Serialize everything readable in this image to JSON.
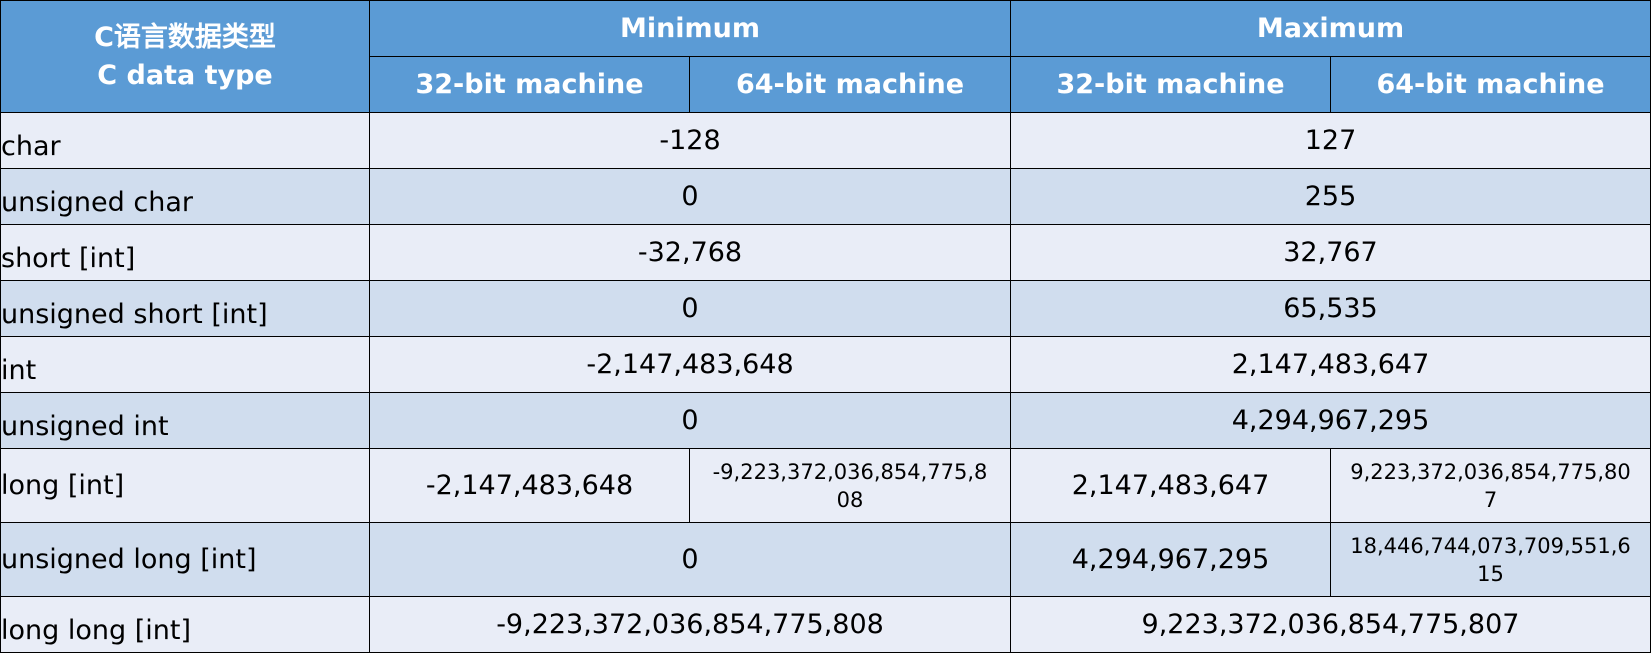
{
  "table": {
    "corner_label_zh": "C语言数据类型",
    "corner_label_en": "C data type",
    "minimum_label": "Minimum",
    "maximum_label": "Maximum",
    "machine_32_label": "32-bit machine",
    "machine_64_label": "64-bit machine",
    "rows": [
      {
        "type": "char",
        "min": "-128",
        "max": "127"
      },
      {
        "type": "unsigned char",
        "min": "0",
        "max": "255"
      },
      {
        "type": "short [int]",
        "min": "-32,768",
        "max": "32,767"
      },
      {
        "type": "unsigned short [int]",
        "min": "0",
        "max": "65,535"
      },
      {
        "type": "int",
        "min": "-2,147,483,648",
        "max": "2,147,483,647"
      },
      {
        "type": "unsigned int",
        "min": "0",
        "max": "4,294,967,295"
      },
      {
        "type": "long [int]",
        "min_32": "-2,147,483,648",
        "min_64": "-9,223,372,036,854,775,808",
        "max_32": "2,147,483,647",
        "max_64": "9,223,372,036,854,775,807"
      },
      {
        "type": "unsigned long [int]",
        "min": "0",
        "max_32": "4,294,967,295",
        "max_64": "18,446,744,073,709,551,615"
      },
      {
        "type": "long long [int]",
        "min": "-9,223,372,036,854,775,808",
        "max": "9,223,372,036,854,775,807"
      }
    ]
  },
  "colors": {
    "header_bg": "#5b9bd5",
    "row_light": "#e9edf7",
    "row_dark": "#d0ddee",
    "border": "#000000"
  }
}
